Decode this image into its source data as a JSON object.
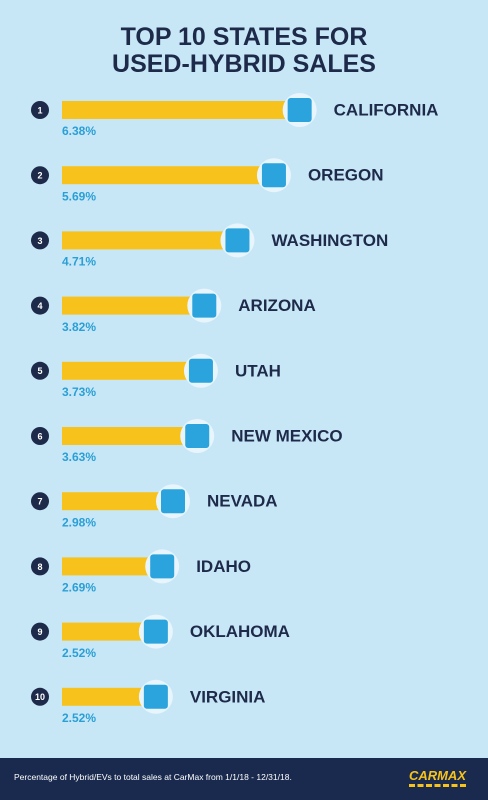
{
  "chart_data": {
    "type": "bar",
    "orientation": "horizontal",
    "title": "TOP 10 STATES FOR USED-HYBRID SALES",
    "ranks": [
      "1",
      "2",
      "3",
      "4",
      "5",
      "6",
      "7",
      "8",
      "9",
      "10"
    ],
    "categories": [
      "CALIFORNIA",
      "OREGON",
      "WASHINGTON",
      "ARIZONA",
      "UTAH",
      "NEW MEXICO",
      "NEVADA",
      "IDAHO",
      "OKLAHOMA",
      "VIRGINIA"
    ],
    "values": [
      6.38,
      5.69,
      4.71,
      3.82,
      3.73,
      3.63,
      2.98,
      2.69,
      2.52,
      2.52
    ],
    "value_labels": [
      "6.38%",
      "5.69%",
      "4.71%",
      "3.82%",
      "3.73%",
      "3.63%",
      "2.98%",
      "2.69%",
      "2.52%",
      "2.52%"
    ],
    "xlim": [
      0,
      8
    ],
    "color": "#f7c21b",
    "footnote": "Percentage of Hybrid/EVs to total sales at CarMax from 1/1/18 - 12/31/18.",
    "logo": "CARMAX"
  }
}
